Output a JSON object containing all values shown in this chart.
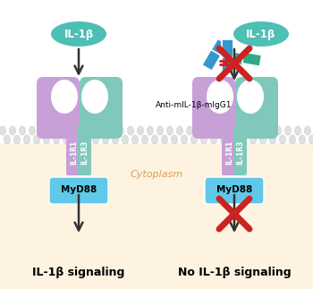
{
  "bg_color": "#ffffff",
  "cytoplasm_color": "#fdf3e0",
  "il1b_oval_color": "#4dbfb5",
  "il1b_oval_text": "IL-1β",
  "receptor_left_color": "#c8a0d8",
  "receptor_right_color": "#80c8bc",
  "receptor_label_left": "IL-1R1",
  "receptor_label_right": "IL-1R3",
  "myd88_color": "#60c8e8",
  "myd88_text": "MyD88",
  "antibody_blue": "#3399cc",
  "antibody_teal": "#30aa88",
  "antibody_red": "#cc2222",
  "anti_label": "Anti-mIL-1β-mIgG1",
  "arrow_color": "#333333",
  "cross_color": "#cc2222",
  "left_label": "IL-1β signaling",
  "right_label": "No IL-1β signaling",
  "cytoplasm_label": "Cytoplasm",
  "cytoplasm_label_color": "#d4a060",
  "membrane_color1": "#e0e0e0",
  "membrane_color2": "#cccccc"
}
